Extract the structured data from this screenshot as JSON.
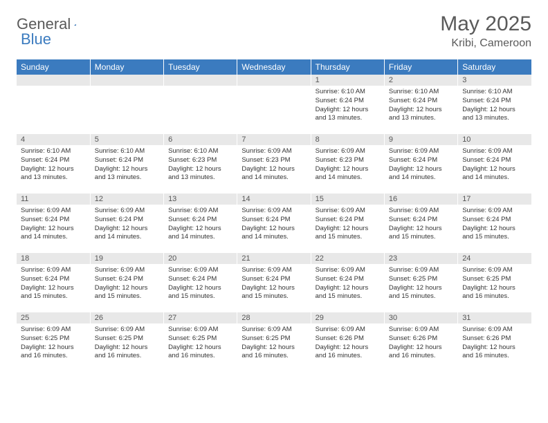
{
  "logo": {
    "general": "General",
    "blue": "Blue"
  },
  "header": {
    "month_title": "May 2025",
    "location": "Kribi, Cameroon"
  },
  "colors": {
    "header_bg": "#3b7bbf",
    "header_text": "#ffffff",
    "daynum_bg": "#e8e8e8",
    "body_text": "#333333",
    "title_text": "#5a5a5a"
  },
  "day_headers": [
    "Sunday",
    "Monday",
    "Tuesday",
    "Wednesday",
    "Thursday",
    "Friday",
    "Saturday"
  ],
  "weeks": [
    [
      null,
      null,
      null,
      null,
      {
        "n": "1",
        "sunrise": "Sunrise: 6:10 AM",
        "sunset": "Sunset: 6:24 PM",
        "daylight": "Daylight: 12 hours and 13 minutes."
      },
      {
        "n": "2",
        "sunrise": "Sunrise: 6:10 AM",
        "sunset": "Sunset: 6:24 PM",
        "daylight": "Daylight: 12 hours and 13 minutes."
      },
      {
        "n": "3",
        "sunrise": "Sunrise: 6:10 AM",
        "sunset": "Sunset: 6:24 PM",
        "daylight": "Daylight: 12 hours and 13 minutes."
      }
    ],
    [
      {
        "n": "4",
        "sunrise": "Sunrise: 6:10 AM",
        "sunset": "Sunset: 6:24 PM",
        "daylight": "Daylight: 12 hours and 13 minutes."
      },
      {
        "n": "5",
        "sunrise": "Sunrise: 6:10 AM",
        "sunset": "Sunset: 6:24 PM",
        "daylight": "Daylight: 12 hours and 13 minutes."
      },
      {
        "n": "6",
        "sunrise": "Sunrise: 6:10 AM",
        "sunset": "Sunset: 6:23 PM",
        "daylight": "Daylight: 12 hours and 13 minutes."
      },
      {
        "n": "7",
        "sunrise": "Sunrise: 6:09 AM",
        "sunset": "Sunset: 6:23 PM",
        "daylight": "Daylight: 12 hours and 14 minutes."
      },
      {
        "n": "8",
        "sunrise": "Sunrise: 6:09 AM",
        "sunset": "Sunset: 6:23 PM",
        "daylight": "Daylight: 12 hours and 14 minutes."
      },
      {
        "n": "9",
        "sunrise": "Sunrise: 6:09 AM",
        "sunset": "Sunset: 6:24 PM",
        "daylight": "Daylight: 12 hours and 14 minutes."
      },
      {
        "n": "10",
        "sunrise": "Sunrise: 6:09 AM",
        "sunset": "Sunset: 6:24 PM",
        "daylight": "Daylight: 12 hours and 14 minutes."
      }
    ],
    [
      {
        "n": "11",
        "sunrise": "Sunrise: 6:09 AM",
        "sunset": "Sunset: 6:24 PM",
        "daylight": "Daylight: 12 hours and 14 minutes."
      },
      {
        "n": "12",
        "sunrise": "Sunrise: 6:09 AM",
        "sunset": "Sunset: 6:24 PM",
        "daylight": "Daylight: 12 hours and 14 minutes."
      },
      {
        "n": "13",
        "sunrise": "Sunrise: 6:09 AM",
        "sunset": "Sunset: 6:24 PM",
        "daylight": "Daylight: 12 hours and 14 minutes."
      },
      {
        "n": "14",
        "sunrise": "Sunrise: 6:09 AM",
        "sunset": "Sunset: 6:24 PM",
        "daylight": "Daylight: 12 hours and 14 minutes."
      },
      {
        "n": "15",
        "sunrise": "Sunrise: 6:09 AM",
        "sunset": "Sunset: 6:24 PM",
        "daylight": "Daylight: 12 hours and 15 minutes."
      },
      {
        "n": "16",
        "sunrise": "Sunrise: 6:09 AM",
        "sunset": "Sunset: 6:24 PM",
        "daylight": "Daylight: 12 hours and 15 minutes."
      },
      {
        "n": "17",
        "sunrise": "Sunrise: 6:09 AM",
        "sunset": "Sunset: 6:24 PM",
        "daylight": "Daylight: 12 hours and 15 minutes."
      }
    ],
    [
      {
        "n": "18",
        "sunrise": "Sunrise: 6:09 AM",
        "sunset": "Sunset: 6:24 PM",
        "daylight": "Daylight: 12 hours and 15 minutes."
      },
      {
        "n": "19",
        "sunrise": "Sunrise: 6:09 AM",
        "sunset": "Sunset: 6:24 PM",
        "daylight": "Daylight: 12 hours and 15 minutes."
      },
      {
        "n": "20",
        "sunrise": "Sunrise: 6:09 AM",
        "sunset": "Sunset: 6:24 PM",
        "daylight": "Daylight: 12 hours and 15 minutes."
      },
      {
        "n": "21",
        "sunrise": "Sunrise: 6:09 AM",
        "sunset": "Sunset: 6:24 PM",
        "daylight": "Daylight: 12 hours and 15 minutes."
      },
      {
        "n": "22",
        "sunrise": "Sunrise: 6:09 AM",
        "sunset": "Sunset: 6:24 PM",
        "daylight": "Daylight: 12 hours and 15 minutes."
      },
      {
        "n": "23",
        "sunrise": "Sunrise: 6:09 AM",
        "sunset": "Sunset: 6:25 PM",
        "daylight": "Daylight: 12 hours and 15 minutes."
      },
      {
        "n": "24",
        "sunrise": "Sunrise: 6:09 AM",
        "sunset": "Sunset: 6:25 PM",
        "daylight": "Daylight: 12 hours and 16 minutes."
      }
    ],
    [
      {
        "n": "25",
        "sunrise": "Sunrise: 6:09 AM",
        "sunset": "Sunset: 6:25 PM",
        "daylight": "Daylight: 12 hours and 16 minutes."
      },
      {
        "n": "26",
        "sunrise": "Sunrise: 6:09 AM",
        "sunset": "Sunset: 6:25 PM",
        "daylight": "Daylight: 12 hours and 16 minutes."
      },
      {
        "n": "27",
        "sunrise": "Sunrise: 6:09 AM",
        "sunset": "Sunset: 6:25 PM",
        "daylight": "Daylight: 12 hours and 16 minutes."
      },
      {
        "n": "28",
        "sunrise": "Sunrise: 6:09 AM",
        "sunset": "Sunset: 6:25 PM",
        "daylight": "Daylight: 12 hours and 16 minutes."
      },
      {
        "n": "29",
        "sunrise": "Sunrise: 6:09 AM",
        "sunset": "Sunset: 6:26 PM",
        "daylight": "Daylight: 12 hours and 16 minutes."
      },
      {
        "n": "30",
        "sunrise": "Sunrise: 6:09 AM",
        "sunset": "Sunset: 6:26 PM",
        "daylight": "Daylight: 12 hours and 16 minutes."
      },
      {
        "n": "31",
        "sunrise": "Sunrise: 6:09 AM",
        "sunset": "Sunset: 6:26 PM",
        "daylight": "Daylight: 12 hours and 16 minutes."
      }
    ]
  ]
}
